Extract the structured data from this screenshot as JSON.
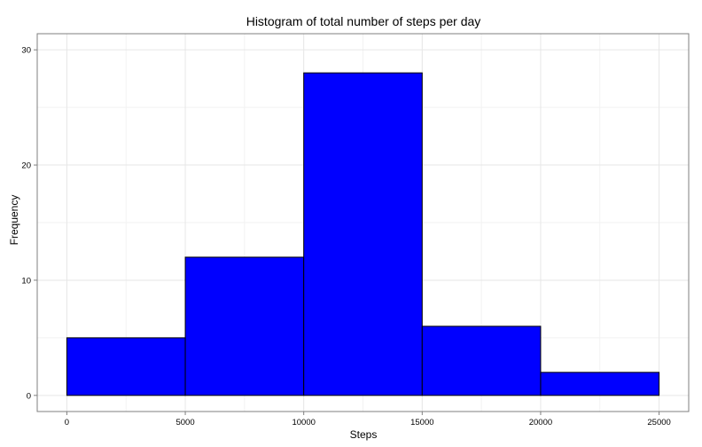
{
  "chart_data": {
    "type": "bar",
    "title": "Histogram of total number of steps per day",
    "xlabel": "Steps",
    "ylabel": "Frequency",
    "bins": [
      {
        "from": 0,
        "to": 5000,
        "value": 5
      },
      {
        "from": 5000,
        "to": 10000,
        "value": 12
      },
      {
        "from": 10000,
        "to": 15000,
        "value": 28
      },
      {
        "from": 15000,
        "to": 20000,
        "value": 6
      },
      {
        "from": 20000,
        "to": 25000,
        "value": 2
      }
    ],
    "xlim": [
      -1250,
      26250
    ],
    "ylim": [
      -1.4,
      31.4
    ],
    "x_ticks": [
      0,
      5000,
      10000,
      15000,
      20000,
      25000
    ],
    "x_tick_labels": [
      "0",
      "5000",
      "10000",
      "15000",
      "20000",
      "25000"
    ],
    "y_ticks": [
      0,
      10,
      20,
      30
    ],
    "y_tick_labels": [
      "0",
      "10",
      "20",
      "30"
    ],
    "grid": true,
    "colors": {
      "bar_fill": "#0000ff",
      "bar_outline": "#000000",
      "grid_major": "#e6e6e6",
      "grid_minor": "#f2f2f2",
      "panel_border": "#7f7f7f"
    }
  }
}
